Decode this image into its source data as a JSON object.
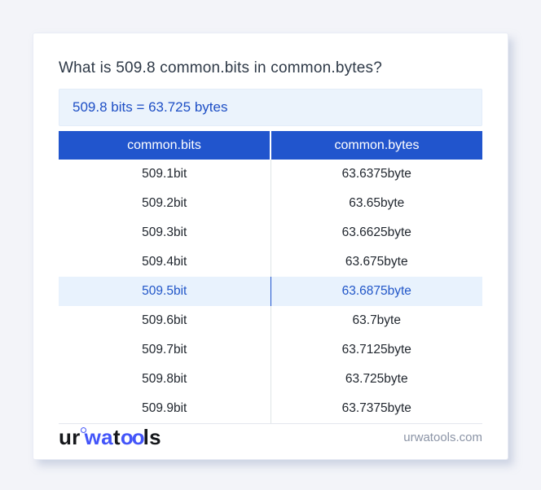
{
  "page": {
    "title": "What is 509.8 common.bits in common.bytes?",
    "result": "509.8 bits = 63.725 bytes"
  },
  "table": {
    "headers": [
      "common.bits",
      "common.bytes"
    ],
    "highlight_index": 4,
    "rows": [
      {
        "bits": "509.1bit",
        "bytes": "63.6375byte"
      },
      {
        "bits": "509.2bit",
        "bytes": "63.65byte"
      },
      {
        "bits": "509.3bit",
        "bytes": "63.6625byte"
      },
      {
        "bits": "509.4bit",
        "bytes": "63.675byte"
      },
      {
        "bits": "509.5bit",
        "bytes": "63.6875byte"
      },
      {
        "bits": "509.6bit",
        "bytes": "63.7byte"
      },
      {
        "bits": "509.7bit",
        "bytes": "63.7125byte"
      },
      {
        "bits": "509.8bit",
        "bytes": "63.725byte"
      },
      {
        "bits": "509.9bit",
        "bytes": "63.7375byte"
      }
    ]
  },
  "footer": {
    "logo": {
      "part1": "ur",
      "part2": "wa",
      "part3": "t",
      "part4": "oo",
      "part5": "ls"
    },
    "domain": "urwatools.com"
  },
  "colors": {
    "accent_blue": "#2155cd",
    "highlight_row_bg": "#e8f2fd",
    "highlight_text": "#2156c8",
    "result_box_bg": "#ebf3fc",
    "result_text": "#1d4ec5",
    "logo_blue": "#4355f9",
    "page_bg": "#f3f4f9"
  }
}
